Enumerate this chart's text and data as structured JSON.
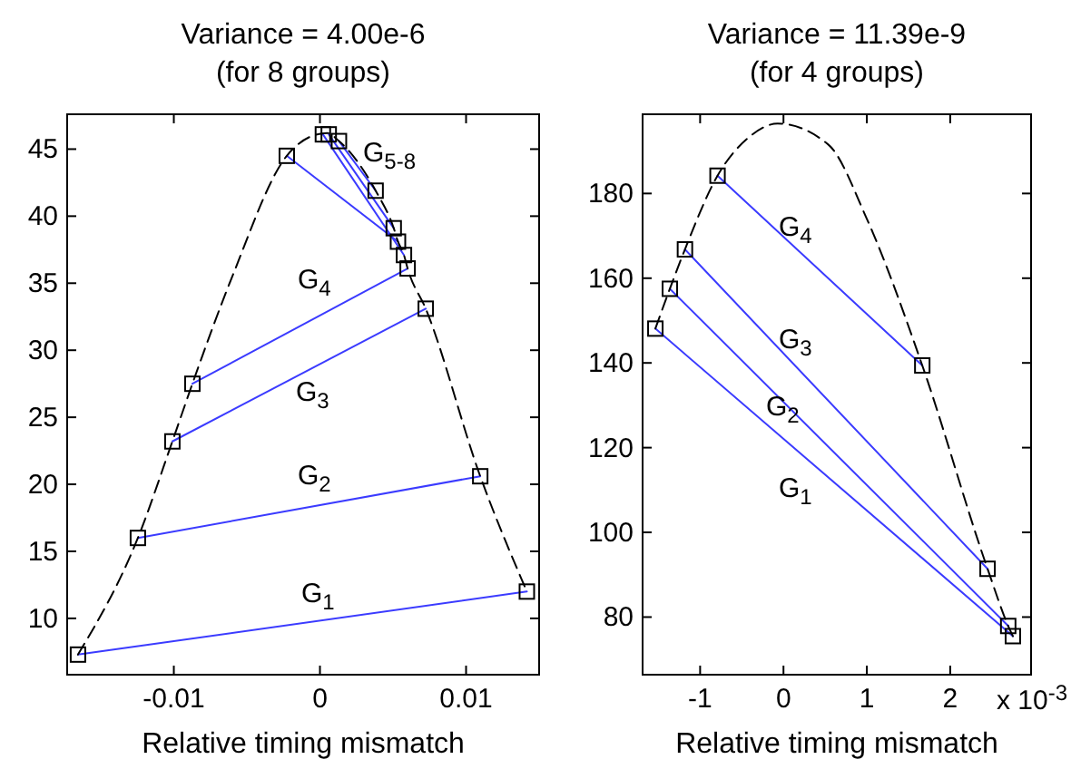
{
  "chart_data": [
    {
      "type": "line",
      "title": "Variance = 4.00e-6",
      "subtitle": "(for 8 groups)",
      "xlabel": "Relative timing mismatch",
      "xlim": [
        -0.0173,
        0.015
      ],
      "ylim": [
        5.8,
        47.6
      ],
      "xticks": [
        -0.01,
        0,
        0.01
      ],
      "yticks": [
        10,
        15,
        20,
        25,
        30,
        35,
        40,
        45
      ],
      "series": [
        {
          "color": "#3b3bff",
          "marker": "none",
          "x": [
            -0.01656,
            0.01416
          ],
          "values": [
            7.3,
            12
          ]
        },
        {
          "color": "#3b3bff",
          "marker": "none",
          "x": [
            -0.01246,
            0.01097
          ],
          "values": [
            16,
            20.6
          ]
        },
        {
          "color": "#3b3bff",
          "marker": "none",
          "x": [
            -0.0101,
            0.00724
          ],
          "values": [
            23.2,
            33.1
          ]
        },
        {
          "color": "#3b3bff",
          "marker": "none",
          "x": [
            -0.00873,
            0.006
          ],
          "values": [
            27.5,
            36.1
          ]
        },
        {
          "color": "#3b3bff",
          "marker": "none",
          "x": [
            -0.00227,
            0.00534
          ],
          "values": [
            44.5,
            38.1
          ]
        },
        {
          "color": "#3b3bff",
          "marker": "none",
          "x": [
            0.0002,
            0.00575
          ],
          "values": [
            46.1,
            37.1
          ]
        },
        {
          "color": "#3b3bff",
          "marker": "none",
          "x": [
            0.0006,
            0.00505
          ],
          "values": [
            46.1,
            39.1
          ]
        },
        {
          "color": "#3b3bff",
          "marker": "none",
          "x": [
            0.0013,
            0.00381
          ],
          "values": [
            45.6,
            41.9
          ]
        },
        {
          "color": "#000000",
          "line_style": "dashed",
          "marker": "none",
          "x": [
            -0.01656,
            -0.01246,
            -0.0101,
            -0.00873,
            -0.006,
            -0.00227,
            -0.0005,
            0.0005,
            0.0013,
            0.00381,
            0.00505,
            0.00534,
            0.00575,
            0.006,
            0.00724,
            0.01097,
            0.01416
          ],
          "values": [
            7.3,
            16,
            23.2,
            27.5,
            35.5,
            44.5,
            46,
            46.2,
            45.6,
            41.9,
            39.1,
            38.1,
            37.1,
            36.1,
            33.1,
            20.6,
            12
          ]
        },
        {
          "type": "scatter",
          "color": "#000000",
          "marker": "square",
          "x": [
            -0.01656,
            0.01416,
            -0.01246,
            0.01097,
            -0.0101,
            0.00724,
            -0.00873,
            0.006,
            -0.00227,
            0.00534,
            0.0002,
            0.00575,
            0.0006,
            0.00505,
            0.0013,
            0.00381
          ],
          "values": [
            7.3,
            12,
            16,
            20.6,
            23.2,
            33.1,
            27.5,
            36.1,
            44.5,
            38.1,
            46.1,
            37.1,
            46.1,
            39.1,
            45.6,
            41.9
          ]
        }
      ],
      "annotations": [
        "G$_{1}$",
        "G$_{2}$",
        "G$_{3}$",
        "G$_{4}$",
        "G$_{5-8}$"
      ]
    },
    {
      "type": "line",
      "title": "Variance = 11.39e-9",
      "subtitle": "(for 4 groups)",
      "xlabel": "Relative timing mismatch",
      "xlim": [
        -1.69,
        2.97
      ],
      "ylim": [
        66.4,
        198.7
      ],
      "xticks": [
        -1,
        0,
        1,
        2
      ],
      "yticks": [
        80,
        100,
        120,
        140,
        160,
        180
      ],
      "series": [
        {
          "color": "#3b3bff",
          "marker": "none",
          "x": [
            -1.537,
            2.752
          ],
          "values": [
            148.1,
            75.5
          ]
        },
        {
          "color": "#3b3bff",
          "marker": "none",
          "x": [
            -1.363,
            2.696
          ],
          "values": [
            157.5,
            77.9
          ]
        },
        {
          "color": "#3b3bff",
          "marker": "none",
          "x": [
            -1.182,
            2.448
          ],
          "values": [
            166.8,
            91.4
          ]
        },
        {
          "color": "#3b3bff",
          "marker": "none",
          "x": [
            -0.791,
            1.665
          ],
          "values": [
            184.2,
            139.4
          ]
        },
        {
          "color": "#000000",
          "line_style": "dashed",
          "marker": "none",
          "x": [
            -1.537,
            -1.363,
            -1.182,
            -0.791,
            -0.4,
            -0.07,
            0.54,
            1.0,
            1.665,
            2.448,
            2.696,
            2.752
          ],
          "values": [
            148.1,
            157.5,
            166.8,
            184.2,
            193.5,
            196.5,
            191.5,
            174,
            139.4,
            91.4,
            77.9,
            75.5
          ]
        },
        {
          "type": "scatter",
          "color": "#000000",
          "marker": "square",
          "x": [
            -1.537,
            2.752,
            -1.363,
            2.696,
            -1.182,
            2.448,
            -0.791,
            1.665
          ],
          "values": [
            148.1,
            75.5,
            157.5,
            77.9,
            166.8,
            91.4,
            184.2,
            139.4
          ]
        }
      ],
      "annotations": [
        "G$_{1}$",
        "G$_{2}$",
        "G$_{3}$",
        "G$_{4}$",
        "x 10$^{-3}$"
      ]
    }
  ]
}
